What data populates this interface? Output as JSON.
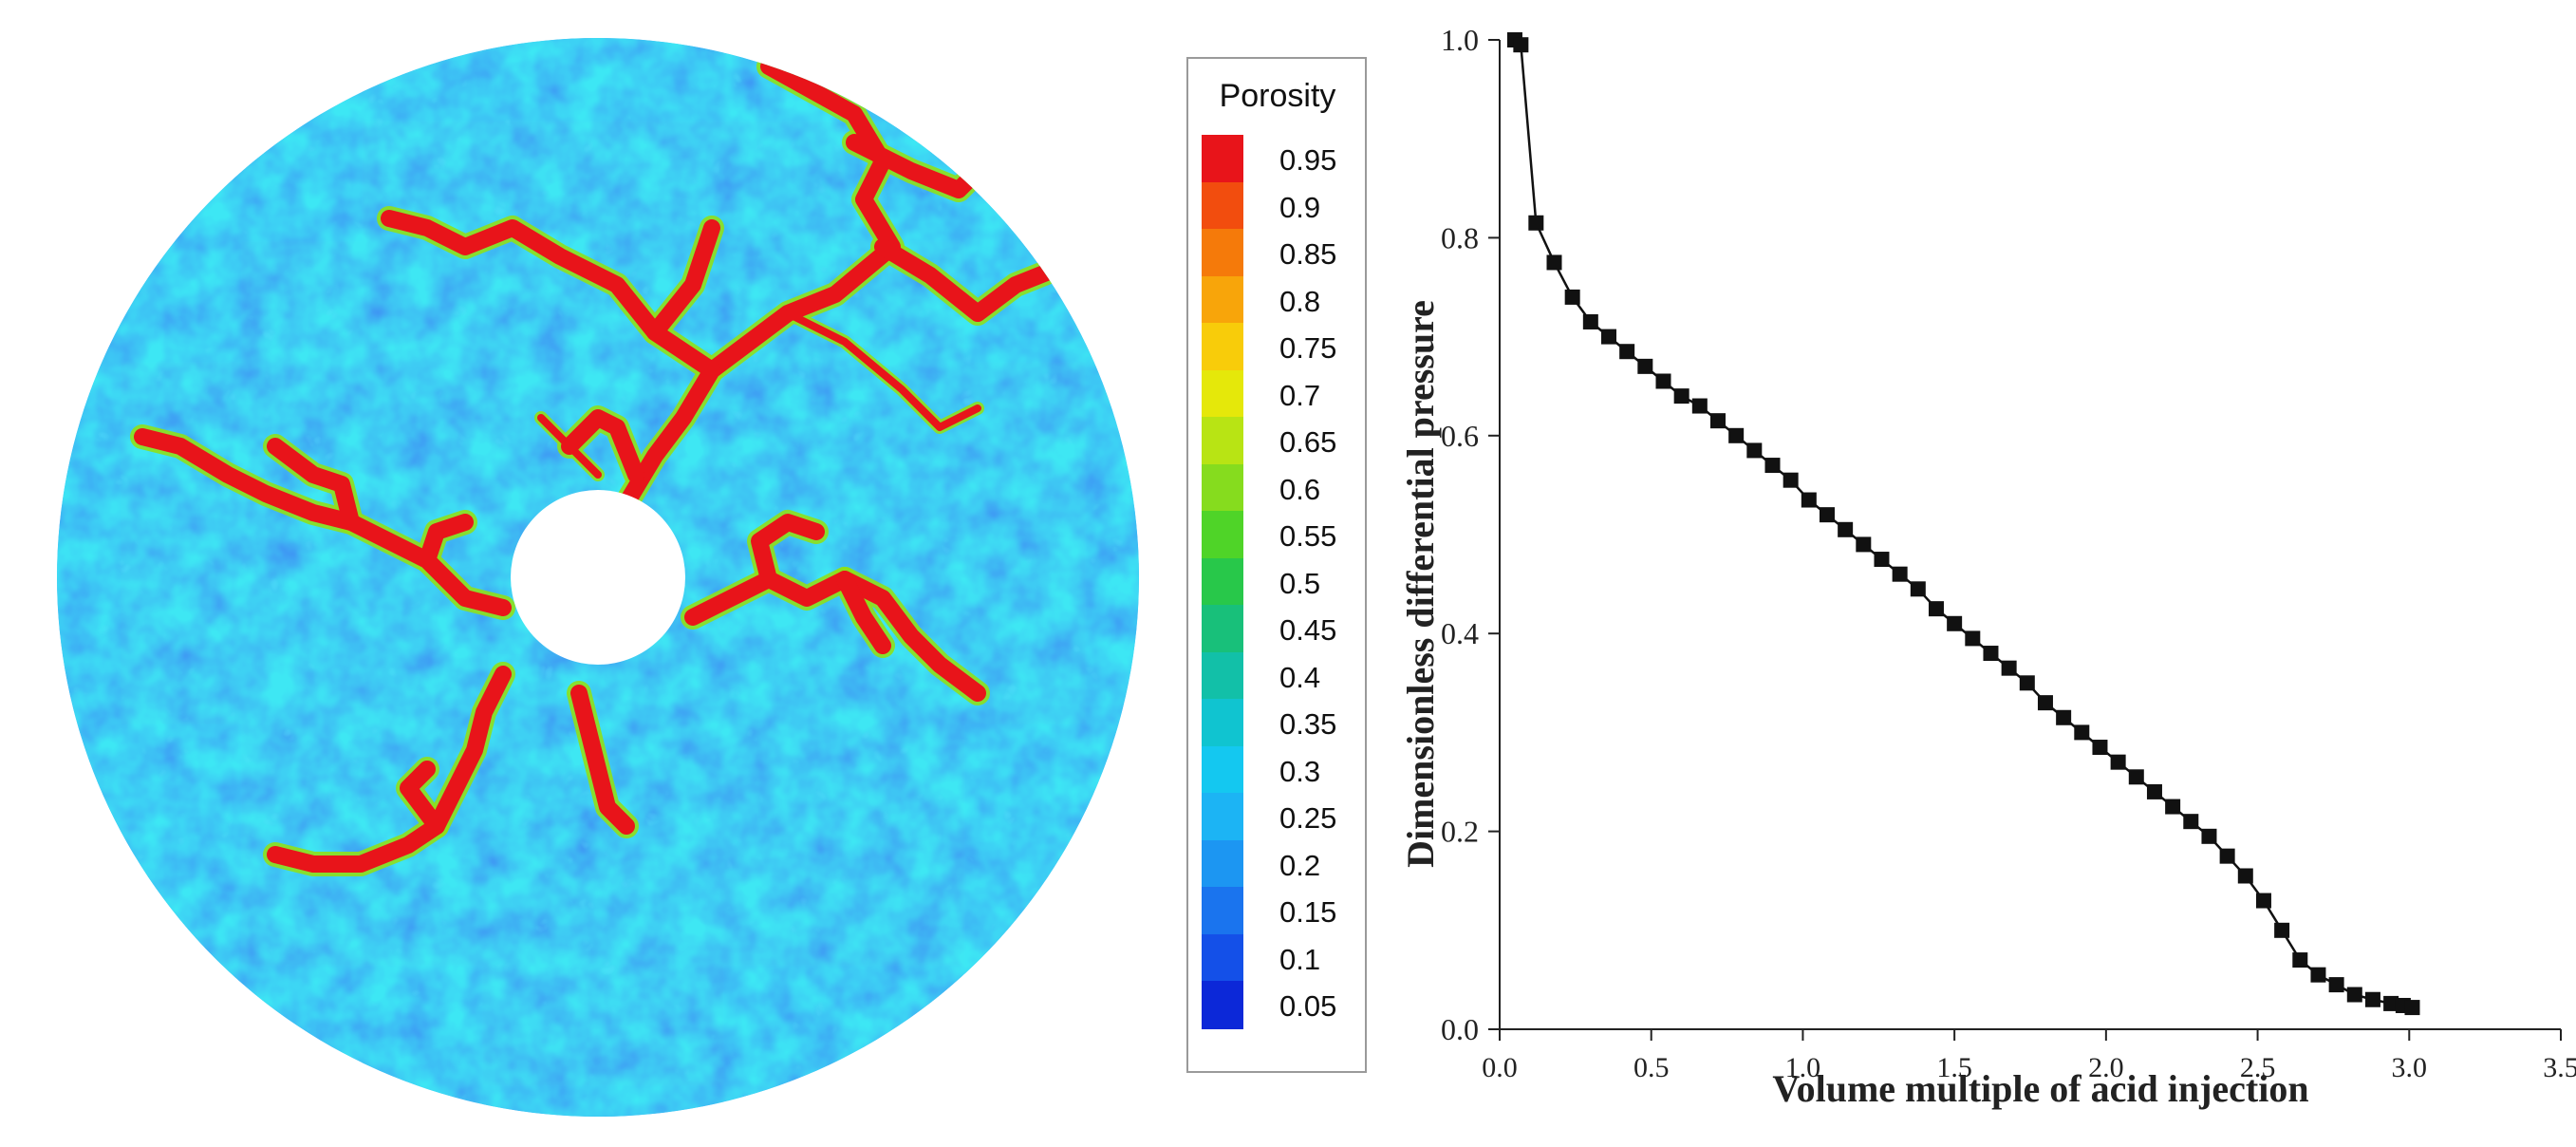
{
  "legend": {
    "title": "Porosity",
    "levels": [
      "0.95",
      "0.9",
      "0.85",
      "0.8",
      "0.75",
      "0.7",
      "0.65",
      "0.6",
      "0.55",
      "0.5",
      "0.45",
      "0.4",
      "0.35",
      "0.3",
      "0.25",
      "0.2",
      "0.15",
      "0.1",
      "0.05"
    ],
    "colors": [
      "#e8141a",
      "#f24d0e",
      "#f57a0a",
      "#f8a50a",
      "#f8cc0a",
      "#e5e80a",
      "#b8e414",
      "#86dc1e",
      "#4fd428",
      "#28c84a",
      "#18c07a",
      "#12c0a8",
      "#10c4d0",
      "#14c8f0",
      "#1cb4f4",
      "#1c96f2",
      "#1a74ee",
      "#1450e8",
      "#0c28d8"
    ]
  },
  "disk": {
    "background_color": "#1a5ee6",
    "channel_color": "#e8141a",
    "core_hole_color": "#ffffff"
  },
  "chart_data": {
    "type": "line",
    "xlabel": "Volume multiple of acid injection",
    "ylabel": "Dimensionless differential pressure",
    "xlim": [
      0.0,
      3.5
    ],
    "ylim": [
      0.0,
      1.0
    ],
    "xticks": [
      "0.0",
      "0.5",
      "1.0",
      "1.5",
      "2.0",
      "2.5",
      "3.0",
      "3.5"
    ],
    "yticks": [
      "0.0",
      "0.2",
      "0.4",
      "0.6",
      "0.8",
      "1.0"
    ],
    "marker": "square",
    "series": [
      {
        "x": [
          0.05,
          0.07,
          0.12,
          0.18,
          0.24,
          0.3,
          0.36,
          0.42,
          0.48,
          0.54,
          0.6,
          0.66,
          0.72,
          0.78,
          0.84,
          0.9,
          0.96,
          1.02,
          1.08,
          1.14,
          1.2,
          1.26,
          1.32,
          1.38,
          1.44,
          1.5,
          1.56,
          1.62,
          1.68,
          1.74,
          1.8,
          1.86,
          1.92,
          1.98,
          2.04,
          2.1,
          2.16,
          2.22,
          2.28,
          2.34,
          2.4,
          2.46,
          2.52,
          2.58,
          2.64,
          2.7,
          2.76,
          2.82,
          2.88,
          2.94,
          2.98,
          3.01
        ],
        "y": [
          1.0,
          0.995,
          0.815,
          0.775,
          0.74,
          0.715,
          0.7,
          0.685,
          0.67,
          0.655,
          0.64,
          0.63,
          0.615,
          0.6,
          0.585,
          0.57,
          0.555,
          0.535,
          0.52,
          0.505,
          0.49,
          0.475,
          0.46,
          0.445,
          0.425,
          0.41,
          0.395,
          0.38,
          0.365,
          0.35,
          0.33,
          0.315,
          0.3,
          0.285,
          0.27,
          0.255,
          0.24,
          0.225,
          0.21,
          0.195,
          0.175,
          0.155,
          0.13,
          0.1,
          0.07,
          0.055,
          0.045,
          0.035,
          0.03,
          0.026,
          0.024,
          0.022
        ]
      }
    ]
  }
}
